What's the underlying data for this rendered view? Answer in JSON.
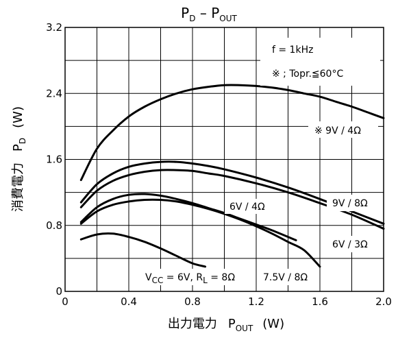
{
  "chart_data": {
    "type": "line",
    "title": "PD – POUT",
    "title_main": "P",
    "title_sub": "D",
    "title_mid": " – P",
    "title_sub2": "OUT",
    "xlabel": "出力電力",
    "xlabel_symbol": "P",
    "xlabel_sub": "OUT",
    "xlabel_unit": "(W)",
    "ylabel": "消費電力",
    "ylabel_symbol": "P",
    "ylabel_sub": "D",
    "ylabel_unit": "(W)",
    "xlim": [
      0,
      2.0
    ],
    "ylim": [
      0,
      3.2
    ],
    "x_ticks": [
      "0",
      "0.4",
      "0.8",
      "1.2",
      "1.6",
      "2.0"
    ],
    "y_ticks": [
      "0",
      "0.8",
      "1.6",
      "2.4",
      "3.2"
    ],
    "grid": true,
    "annotations": {
      "frequency": "f = 1kHz",
      "condition": "※ ; Topr.≦60°C",
      "vcc_rl_prefix": "V",
      "vcc_sub": "CC",
      "vcc_mid": " = 6V,  R",
      "rl_sub": "L",
      "vcc_rl_suffix": " = 8Ω"
    },
    "series": [
      {
        "name": "※ 9V / 4Ω",
        "x": [
          0.1,
          0.2,
          0.3,
          0.4,
          0.5,
          0.6,
          0.7,
          0.8,
          0.9,
          1.0,
          1.1,
          1.2,
          1.3,
          1.4,
          1.5,
          1.6,
          1.7,
          1.8,
          1.9,
          2.0
        ],
        "values": [
          1.35,
          1.73,
          1.95,
          2.12,
          2.24,
          2.33,
          2.4,
          2.45,
          2.48,
          2.5,
          2.5,
          2.49,
          2.47,
          2.44,
          2.4,
          2.36,
          2.3,
          2.24,
          2.17,
          2.1
        ]
      },
      {
        "name": "9V / 8Ω",
        "x": [
          0.1,
          0.2,
          0.3,
          0.4,
          0.5,
          0.6,
          0.7,
          0.8,
          0.9,
          1.0,
          1.2,
          1.4,
          1.6,
          1.8,
          2.0
        ],
        "values": [
          1.08,
          1.3,
          1.43,
          1.51,
          1.55,
          1.57,
          1.57,
          1.55,
          1.52,
          1.48,
          1.38,
          1.26,
          1.12,
          0.97,
          0.82
        ]
      },
      {
        "name": "6V / 3Ω",
        "x": [
          0.1,
          0.2,
          0.3,
          0.4,
          0.5,
          0.6,
          0.7,
          0.8,
          0.9,
          1.0,
          1.2,
          1.4,
          1.6,
          1.8,
          2.0
        ],
        "values": [
          1.02,
          1.22,
          1.34,
          1.41,
          1.45,
          1.47,
          1.47,
          1.46,
          1.43,
          1.4,
          1.31,
          1.2,
          1.07,
          0.93,
          0.76
        ]
      },
      {
        "name": "6V / 4Ω",
        "x": [
          0.1,
          0.2,
          0.3,
          0.4,
          0.5,
          0.6,
          0.7,
          0.8,
          0.9,
          1.0,
          1.1,
          1.2,
          1.3,
          1.45
        ],
        "values": [
          0.84,
          1.02,
          1.12,
          1.17,
          1.18,
          1.16,
          1.12,
          1.07,
          1.01,
          0.95,
          0.88,
          0.81,
          0.74,
          0.62
        ]
      },
      {
        "name": "7.5V / 8Ω",
        "x": [
          0.1,
          0.2,
          0.3,
          0.4,
          0.5,
          0.6,
          0.7,
          0.8,
          0.9,
          1.0,
          1.1,
          1.2,
          1.3,
          1.4,
          1.5,
          1.6
        ],
        "values": [
          0.82,
          0.97,
          1.05,
          1.09,
          1.11,
          1.11,
          1.09,
          1.05,
          1.0,
          0.94,
          0.87,
          0.79,
          0.7,
          0.6,
          0.5,
          0.3
        ]
      },
      {
        "name": "VCC = 6V, RL = 8Ω",
        "x": [
          0.1,
          0.2,
          0.3,
          0.4,
          0.5,
          0.6,
          0.7,
          0.8,
          0.88
        ],
        "values": [
          0.63,
          0.69,
          0.7,
          0.66,
          0.6,
          0.52,
          0.43,
          0.34,
          0.3
        ]
      }
    ]
  }
}
